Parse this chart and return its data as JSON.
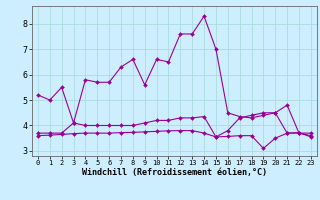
{
  "title": "",
  "xlabel": "Windchill (Refroidissement éolien,°C)",
  "ylabel": "",
  "background_color": "#cceeff",
  "grid_color": "#aadddd",
  "line_color": "#990099",
  "xlim": [
    -0.5,
    23.5
  ],
  "ylim": [
    2.8,
    8.7
  ],
  "yticks": [
    3,
    4,
    5,
    6,
    7,
    8
  ],
  "xticks": [
    0,
    1,
    2,
    3,
    4,
    5,
    6,
    7,
    8,
    9,
    10,
    11,
    12,
    13,
    14,
    15,
    16,
    17,
    18,
    19,
    20,
    21,
    22,
    23
  ],
  "line1_x": [
    0,
    1,
    2,
    3,
    4,
    5,
    6,
    7,
    8,
    9,
    10,
    11,
    12,
    13,
    14,
    15,
    16,
    17,
    18,
    19,
    20,
    21,
    22,
    23
  ],
  "line1_y": [
    5.2,
    5.0,
    5.5,
    4.1,
    5.8,
    5.7,
    5.7,
    6.3,
    6.6,
    5.6,
    6.6,
    6.5,
    7.6,
    7.6,
    8.3,
    7.0,
    4.5,
    4.35,
    4.3,
    4.4,
    4.5,
    4.8,
    3.7,
    3.7
  ],
  "line2_x": [
    0,
    1,
    2,
    3,
    4,
    5,
    6,
    7,
    8,
    9,
    10,
    11,
    12,
    13,
    14,
    15,
    16,
    17,
    18,
    19,
    20,
    21,
    22,
    23
  ],
  "line2_y": [
    3.7,
    3.7,
    3.7,
    4.1,
    4.0,
    4.0,
    4.0,
    4.0,
    4.0,
    4.1,
    4.2,
    4.2,
    4.3,
    4.3,
    4.35,
    3.55,
    3.8,
    4.3,
    4.4,
    4.5,
    4.5,
    3.7,
    3.7,
    3.6
  ],
  "line3_x": [
    0,
    1,
    2,
    3,
    4,
    5,
    6,
    7,
    8,
    9,
    10,
    11,
    12,
    13,
    14,
    15,
    16,
    17,
    18,
    19,
    20,
    21,
    22,
    23
  ],
  "line3_y": [
    3.6,
    3.62,
    3.65,
    3.68,
    3.7,
    3.7,
    3.7,
    3.72,
    3.73,
    3.75,
    3.77,
    3.79,
    3.8,
    3.8,
    3.7,
    3.55,
    3.57,
    3.6,
    3.6,
    3.1,
    3.5,
    3.7,
    3.72,
    3.55
  ],
  "xlabel_fontsize": 6,
  "ytick_fontsize": 6,
  "xtick_fontsize": 5
}
